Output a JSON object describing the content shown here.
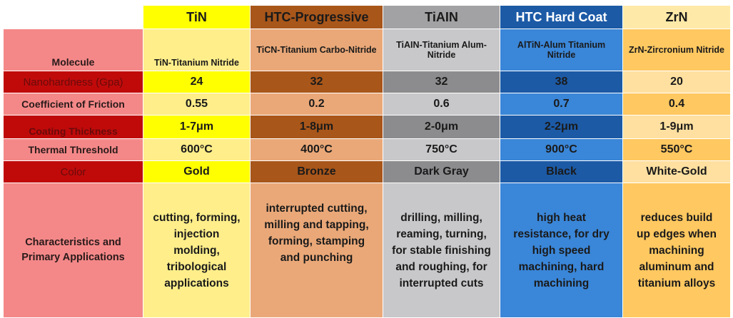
{
  "columns": [
    {
      "name": "TiN",
      "header_color": "#ffff00",
      "dark": "#ffff00",
      "light": "#ffee8a"
    },
    {
      "name": "HTC-Progressive",
      "header_color": "#a8561a",
      "dark": "#a8561a",
      "light": "#eaa878"
    },
    {
      "name": "TiAIN",
      "header_color": "#a2a2a4",
      "dark": "#8c8c8e",
      "light": "#c8c8ca"
    },
    {
      "name": "HTC Hard Coat",
      "header_color": "#1c5aa6",
      "dark": "#1c5aa6",
      "light": "#3a86d8"
    },
    {
      "name": "ZrN",
      "header_color": "#ffe9a8",
      "dark": "#ffe0a0",
      "light": "#ffc860"
    }
  ],
  "rows": {
    "molecule": {
      "label": "Molecule",
      "values": [
        "TiN-Titanium Nitride",
        "TiCN-Titanium Carbo-Nitride",
        "TiAIN-Titanium Alum-Nitride",
        "AlTiN-Alum Titanium Nitride",
        "ZrN-Zircronium Nitride"
      ]
    },
    "nanohardness": {
      "label": "Nanohardness (Gpa)",
      "values": [
        "24",
        "32",
        "32",
        "38",
        "20"
      ]
    },
    "friction": {
      "label": "Coefficient of Friction",
      "values": [
        "0.55",
        "0.2",
        "0.6",
        "0.7",
        "0.4"
      ]
    },
    "thickness": {
      "label": "Coating Thickness",
      "values": [
        "1-7μm",
        "1-8μm",
        "2-0μm",
        "2-2μm",
        "1-9μm"
      ]
    },
    "thermal": {
      "label": "Thermal Threshold",
      "values": [
        "600°C",
        "400°C",
        "750°C",
        "900°C",
        "550°C"
      ]
    },
    "color": {
      "label": "Color",
      "values": [
        "Gold",
        "Bronze",
        "Dark Gray",
        "Black",
        "White-Gold"
      ]
    },
    "applications": {
      "label_lines": [
        "Characteristics and",
        "Primary Applications"
      ],
      "values": [
        [
          "cutting, forming,",
          "injection",
          "molding,",
          "tribological",
          "applications"
        ],
        [
          "interrupted cutting,",
          "milling and tapping,",
          "forming, stamping",
          "and punching"
        ],
        [
          "drilling, milling,",
          "reaming, turning,",
          "for stable finishing",
          "and roughing, for",
          "interrupted cuts"
        ],
        [
          "high heat",
          "resistance, for dry",
          "high speed",
          "machining, hard",
          "machining"
        ],
        [
          "reduces build",
          "up edges when",
          "machining",
          "aluminum and",
          "titanium alloys"
        ]
      ]
    }
  }
}
